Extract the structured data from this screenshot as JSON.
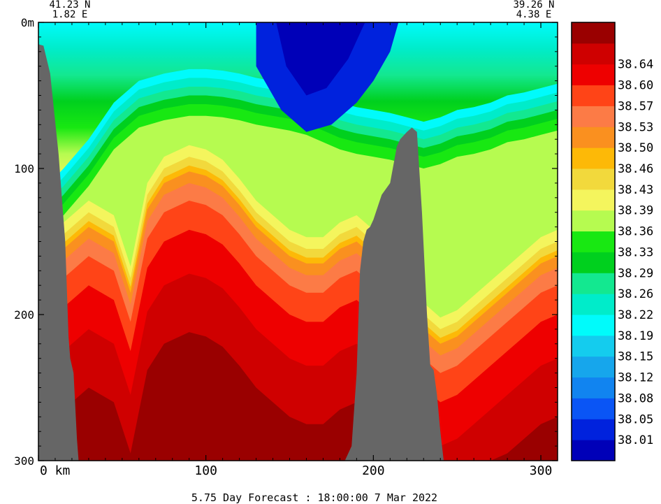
{
  "endpoints": {
    "start": {
      "lat": "41.23 N",
      "lon": "1.82 E"
    },
    "end": {
      "lat": "39.26 N",
      "lon": "4.38 E"
    }
  },
  "footer": "5.75 Day Forecast : 18:00:00   7 Mar 2022",
  "chart_data": {
    "type": "heatmap",
    "variable": "salinity",
    "x_unit": "km",
    "y_unit": "m",
    "xlim": [
      0,
      310
    ],
    "ylim": [
      300,
      0
    ],
    "x_ticks": [
      0,
      100,
      200,
      300
    ],
    "x_tick_labels": [
      "0  km",
      "100",
      "200",
      "300"
    ],
    "y_ticks": [
      0,
      100,
      200,
      300
    ],
    "y_tick_labels": [
      "0m",
      "100",
      "200",
      "300"
    ],
    "colorbar": {
      "levels": [
        38.01,
        38.05,
        38.08,
        38.12,
        38.15,
        38.19,
        38.22,
        38.26,
        38.29,
        38.33,
        38.36,
        38.39,
        38.43,
        38.46,
        38.5,
        38.53,
        38.57,
        38.6,
        38.64
      ],
      "level_labels": [
        "38.01",
        "38.05",
        "38.08",
        "38.12",
        "38.15",
        "38.19",
        "38.22",
        "38.26",
        "38.29",
        "38.33",
        "38.36",
        "38.39",
        "38.43",
        "38.46",
        "38.50",
        "38.53",
        "38.57",
        "38.60",
        "38.64"
      ],
      "colors": [
        "#0000b8",
        "#0022dd",
        "#0a55f5",
        "#1184f0",
        "#16a6ec",
        "#14ccee",
        "#00fbfb",
        "#00ecca",
        "#13e890",
        "#00d01e",
        "#18e812",
        "#b6fb50",
        "#f4f55d",
        "#f2d93c",
        "#fdb907",
        "#fa901f",
        "#fc7b46",
        "#ff4417",
        "#ee0000",
        "#cf0000",
        "#9a0000"
      ]
    },
    "upper_boundary": [
      [
        0,
        118
      ],
      [
        15,
        100
      ],
      [
        30,
        80
      ],
      [
        45,
        55
      ],
      [
        60,
        40
      ],
      [
        75,
        35
      ],
      [
        90,
        32
      ],
      [
        100,
        32
      ],
      [
        110,
        33
      ],
      [
        120,
        35
      ],
      [
        130,
        38
      ],
      [
        140,
        40
      ],
      [
        150,
        42
      ],
      [
        160,
        45
      ],
      [
        170,
        50
      ],
      [
        180,
        55
      ],
      [
        190,
        58
      ],
      [
        200,
        60
      ],
      [
        210,
        62
      ],
      [
        220,
        65
      ],
      [
        230,
        68
      ],
      [
        240,
        65
      ],
      [
        250,
        60
      ],
      [
        260,
        58
      ],
      [
        270,
        55
      ],
      [
        280,
        50
      ],
      [
        290,
        48
      ],
      [
        300,
        45
      ],
      [
        310,
        42
      ]
    ],
    "lower_boundary": [
      [
        0,
        175
      ],
      [
        15,
        155
      ],
      [
        30,
        140
      ],
      [
        45,
        150
      ],
      [
        55,
        185
      ],
      [
        65,
        128
      ],
      [
        75,
        110
      ],
      [
        90,
        102
      ],
      [
        100,
        105
      ],
      [
        110,
        112
      ],
      [
        120,
        125
      ],
      [
        130,
        140
      ],
      [
        140,
        150
      ],
      [
        150,
        160
      ],
      [
        160,
        165
      ],
      [
        170,
        165
      ],
      [
        180,
        155
      ],
      [
        190,
        150
      ],
      [
        200,
        160
      ],
      [
        210,
        175
      ],
      [
        220,
        195
      ],
      [
        230,
        210
      ],
      [
        240,
        220
      ],
      [
        250,
        215
      ],
      [
        260,
        205
      ],
      [
        270,
        195
      ],
      [
        280,
        185
      ],
      [
        290,
        175
      ],
      [
        300,
        165
      ],
      [
        310,
        160
      ]
    ],
    "bathymetry": [
      [
        0,
        15
      ],
      [
        3,
        16
      ],
      [
        7,
        35
      ],
      [
        12,
        90
      ],
      [
        16,
        150
      ],
      [
        18,
        215
      ],
      [
        19,
        230
      ],
      [
        21,
        240
      ],
      [
        23,
        285
      ],
      [
        24,
        300
      ],
      [
        0,
        300
      ]
    ],
    "seamount": [
      [
        183,
        300
      ],
      [
        187,
        290
      ],
      [
        190,
        240
      ],
      [
        192,
        170
      ],
      [
        194,
        150
      ],
      [
        196,
        142
      ],
      [
        198,
        140
      ],
      [
        200,
        135
      ],
      [
        205,
        118
      ],
      [
        210,
        110
      ],
      [
        214,
        85
      ],
      [
        216,
        80
      ],
      [
        220,
        75
      ],
      [
        223,
        72
      ],
      [
        226,
        75
      ],
      [
        229,
        130
      ],
      [
        232,
        200
      ],
      [
        234,
        235
      ],
      [
        236,
        238
      ],
      [
        238,
        255
      ],
      [
        240,
        280
      ],
      [
        242,
        300
      ]
    ]
  }
}
